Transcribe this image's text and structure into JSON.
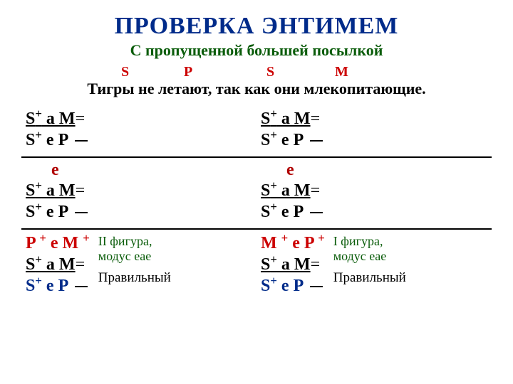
{
  "title": "ПРОВЕРКА ЭНТИМЕМ",
  "subtitle": "С пропущенной большей посылкой",
  "letters": {
    "s1": "S",
    "p": "P",
    "s2": "S",
    "m": "M"
  },
  "sentence": "Тигры не летают, так как они млекопитающие.",
  "block": {
    "line1_s": "S",
    "line1_sup": "+",
    "line1_a": " a M",
    "line1_eq": "=",
    "line2_s": "S",
    "line2_plus": "+",
    "line2_ep": " e P "
  },
  "e_label": "e",
  "bottom_left": {
    "pm": {
      "p": "P ",
      "plus": "+",
      "e": " e M ",
      "m_plus": "+"
    }
  },
  "bottom_right": {
    "mp": {
      "m": "M ",
      "plus": "+",
      "e": " e  P ",
      "p_plus": "+"
    }
  },
  "fig_left": {
    "l1": "II фигура,",
    "l2": "модус eae",
    "correct": "Правильный"
  },
  "fig_right": {
    "l1": "I фигура,",
    "l2": "модус eae",
    "correct": "Правильный"
  },
  "letter_positions": {
    "s1": 140,
    "p": 228,
    "s2": 344,
    "m": 440
  }
}
